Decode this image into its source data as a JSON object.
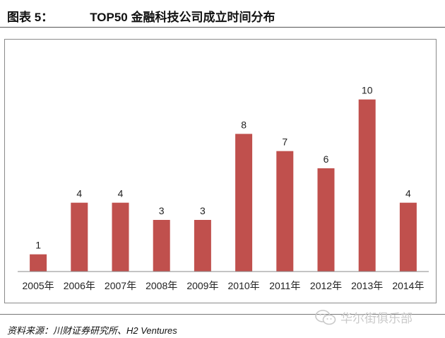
{
  "header": {
    "figure_label": "图表 5：",
    "title": "TOP50 金融科技公司成立时间分布"
  },
  "footer": {
    "source": "资料来源：川财证券研究所、H2 Ventures"
  },
  "watermark": {
    "text": "华尔街俱乐部",
    "icon": "wechat-icon"
  },
  "chart_data": {
    "type": "bar",
    "title": "",
    "xlabel": "",
    "ylabel": "",
    "categories": [
      "2005年",
      "2006年",
      "2007年",
      "2008年",
      "2009年",
      "2010年",
      "2011年",
      "2012年",
      "2013年",
      "2014年"
    ],
    "values": [
      1,
      4,
      4,
      3,
      3,
      8,
      7,
      6,
      10,
      4
    ],
    "ylim": [
      0,
      12
    ],
    "bar_color": "#c0504d",
    "data_labels": true,
    "grid": false,
    "legend": "none"
  }
}
